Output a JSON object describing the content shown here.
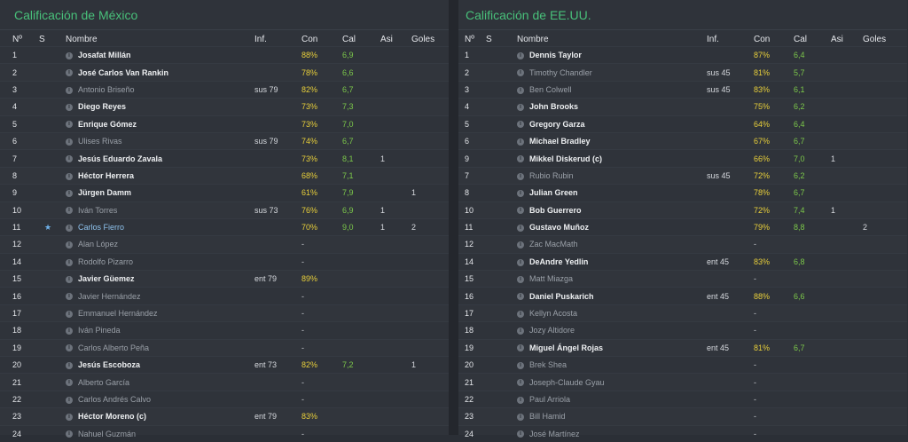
{
  "left": {
    "title": "Calificación de México",
    "headers": {
      "num": "Nº",
      "s": "S",
      "name": "Nombre",
      "inf": "Inf.",
      "con": "Con",
      "cal": "Cal",
      "asi": "Asi",
      "goles": "Goles"
    },
    "rows": [
      {
        "num": "1",
        "s": "",
        "name": "Josafat Millán",
        "inf": "",
        "con": "88%",
        "cal": "6,9",
        "asi": "",
        "goles": "",
        "starter": true
      },
      {
        "num": "2",
        "s": "",
        "name": "José Carlos Van Rankin",
        "inf": "",
        "con": "78%",
        "cal": "6,6",
        "asi": "",
        "goles": "",
        "starter": true
      },
      {
        "num": "3",
        "s": "",
        "name": "Antonio Briseño",
        "inf": "sus 79",
        "con": "82%",
        "cal": "6,7",
        "asi": "",
        "goles": "",
        "starter": false
      },
      {
        "num": "4",
        "s": "",
        "name": "Diego Reyes",
        "inf": "",
        "con": "73%",
        "cal": "7,3",
        "asi": "",
        "goles": "",
        "starter": true
      },
      {
        "num": "5",
        "s": "",
        "name": "Enrique Gómez",
        "inf": "",
        "con": "73%",
        "cal": "7,0",
        "asi": "",
        "goles": "",
        "starter": true
      },
      {
        "num": "6",
        "s": "",
        "name": "Ulises Rivas",
        "inf": "sus 79",
        "con": "74%",
        "cal": "6,7",
        "asi": "",
        "goles": "",
        "starter": false
      },
      {
        "num": "7",
        "s": "",
        "name": "Jesús Eduardo Zavala",
        "inf": "",
        "con": "73%",
        "cal": "8,1",
        "asi": "1",
        "goles": "",
        "starter": true
      },
      {
        "num": "8",
        "s": "",
        "name": "Héctor Herrera",
        "inf": "",
        "con": "68%",
        "cal": "7,1",
        "asi": "",
        "goles": "",
        "starter": true
      },
      {
        "num": "9",
        "s": "",
        "name": "Jürgen Damm",
        "inf": "",
        "con": "61%",
        "cal": "7,9",
        "asi": "",
        "goles": "1",
        "starter": true
      },
      {
        "num": "10",
        "s": "",
        "name": "Iván Torres",
        "inf": "sus 73",
        "con": "76%",
        "cal": "6,9",
        "asi": "1",
        "goles": "",
        "starter": false
      },
      {
        "num": "11",
        "s": "★",
        "name": "Carlos Fierro",
        "inf": "",
        "con": "70%",
        "cal": "9,0",
        "asi": "1",
        "goles": "2",
        "starter": true,
        "highlight": true
      },
      {
        "num": "12",
        "s": "",
        "name": "Alan López",
        "inf": "",
        "con": "-",
        "cal": "",
        "asi": "",
        "goles": "",
        "starter": false
      },
      {
        "num": "14",
        "s": "",
        "name": "Rodolfo Pizarro",
        "inf": "",
        "con": "-",
        "cal": "",
        "asi": "",
        "goles": "",
        "starter": false
      },
      {
        "num": "15",
        "s": "",
        "name": "Javier Güemez",
        "inf": "ent 79",
        "con": "89%",
        "cal": "",
        "asi": "",
        "goles": "",
        "starter": true
      },
      {
        "num": "16",
        "s": "",
        "name": "Javier Hernández",
        "inf": "",
        "con": "-",
        "cal": "",
        "asi": "",
        "goles": "",
        "starter": false
      },
      {
        "num": "17",
        "s": "",
        "name": "Emmanuel Hernández",
        "inf": "",
        "con": "-",
        "cal": "",
        "asi": "",
        "goles": "",
        "starter": false
      },
      {
        "num": "18",
        "s": "",
        "name": "Iván Pineda",
        "inf": "",
        "con": "-",
        "cal": "",
        "asi": "",
        "goles": "",
        "starter": false
      },
      {
        "num": "19",
        "s": "",
        "name": "Carlos Alberto Peña",
        "inf": "",
        "con": "-",
        "cal": "",
        "asi": "",
        "goles": "",
        "starter": false
      },
      {
        "num": "20",
        "s": "",
        "name": "Jesús Escoboza",
        "inf": "ent 73",
        "con": "82%",
        "cal": "7,2",
        "asi": "",
        "goles": "1",
        "starter": true
      },
      {
        "num": "21",
        "s": "",
        "name": "Alberto García",
        "inf": "",
        "con": "-",
        "cal": "",
        "asi": "",
        "goles": "",
        "starter": false
      },
      {
        "num": "22",
        "s": "",
        "name": "Carlos Andrés Calvo",
        "inf": "",
        "con": "-",
        "cal": "",
        "asi": "",
        "goles": "",
        "starter": false
      },
      {
        "num": "23",
        "s": "",
        "name": "Héctor Moreno (c)",
        "inf": "ent 79",
        "con": "83%",
        "cal": "",
        "asi": "",
        "goles": "",
        "starter": true
      },
      {
        "num": "24",
        "s": "",
        "name": "Nahuel Guzmán",
        "inf": "",
        "con": "-",
        "cal": "",
        "asi": "",
        "goles": "",
        "starter": false
      }
    ]
  },
  "right": {
    "title": "Calificación de EE.UU.",
    "headers": {
      "num": "Nº",
      "s": "S",
      "name": "Nombre",
      "inf": "Inf.",
      "con": "Con",
      "cal": "Cal",
      "asi": "Asi",
      "goles": "Goles"
    },
    "rows": [
      {
        "num": "1",
        "s": "",
        "name": "Dennis Taylor",
        "inf": "",
        "con": "87%",
        "cal": "6,4",
        "asi": "",
        "goles": "",
        "starter": true
      },
      {
        "num": "2",
        "s": "",
        "name": "Timothy Chandler",
        "inf": "sus 45",
        "con": "81%",
        "cal": "5,7",
        "asi": "",
        "goles": "",
        "starter": false
      },
      {
        "num": "3",
        "s": "",
        "name": "Ben Colwell",
        "inf": "sus 45",
        "con": "83%",
        "cal": "6,1",
        "asi": "",
        "goles": "",
        "starter": false
      },
      {
        "num": "4",
        "s": "",
        "name": "John Brooks",
        "inf": "",
        "con": "75%",
        "cal": "6,2",
        "asi": "",
        "goles": "",
        "starter": true
      },
      {
        "num": "5",
        "s": "",
        "name": "Gregory Garza",
        "inf": "",
        "con": "64%",
        "cal": "6,4",
        "asi": "",
        "goles": "",
        "starter": true
      },
      {
        "num": "6",
        "s": "",
        "name": "Michael Bradley",
        "inf": "",
        "con": "67%",
        "cal": "6,7",
        "asi": "",
        "goles": "",
        "starter": true
      },
      {
        "num": "9",
        "s": "",
        "name": "Mikkel Diskerud (c)",
        "inf": "",
        "con": "66%",
        "cal": "7,0",
        "asi": "1",
        "goles": "",
        "starter": true
      },
      {
        "num": "7",
        "s": "",
        "name": "Rubio Rubin",
        "inf": "sus 45",
        "con": "72%",
        "cal": "6,2",
        "asi": "",
        "goles": "",
        "starter": false
      },
      {
        "num": "8",
        "s": "",
        "name": "Julian Green",
        "inf": "",
        "con": "78%",
        "cal": "6,7",
        "asi": "",
        "goles": "",
        "starter": true
      },
      {
        "num": "10",
        "s": "",
        "name": "Bob Guerrero",
        "inf": "",
        "con": "72%",
        "cal": "7,4",
        "asi": "1",
        "goles": "",
        "starter": true
      },
      {
        "num": "11",
        "s": "",
        "name": "Gustavo Muñoz",
        "inf": "",
        "con": "79%",
        "cal": "8,8",
        "asi": "",
        "goles": "2",
        "starter": true
      },
      {
        "num": "12",
        "s": "",
        "name": "Zac MacMath",
        "inf": "",
        "con": "-",
        "cal": "",
        "asi": "",
        "goles": "",
        "starter": false
      },
      {
        "num": "14",
        "s": "",
        "name": "DeAndre Yedlin",
        "inf": "ent 45",
        "con": "83%",
        "cal": "6,8",
        "asi": "",
        "goles": "",
        "starter": true
      },
      {
        "num": "15",
        "s": "",
        "name": "Matt Miazga",
        "inf": "",
        "con": "-",
        "cal": "",
        "asi": "",
        "goles": "",
        "starter": false
      },
      {
        "num": "16",
        "s": "",
        "name": "Daniel Puskarich",
        "inf": "ent 45",
        "con": "88%",
        "cal": "6,6",
        "asi": "",
        "goles": "",
        "starter": true
      },
      {
        "num": "17",
        "s": "",
        "name": "Kellyn Acosta",
        "inf": "",
        "con": "-",
        "cal": "",
        "asi": "",
        "goles": "",
        "starter": false
      },
      {
        "num": "18",
        "s": "",
        "name": "Jozy Altidore",
        "inf": "",
        "con": "-",
        "cal": "",
        "asi": "",
        "goles": "",
        "starter": false
      },
      {
        "num": "19",
        "s": "",
        "name": "Miguel Ángel Rojas",
        "inf": "ent 45",
        "con": "81%",
        "cal": "6,7",
        "asi": "",
        "goles": "",
        "starter": true
      },
      {
        "num": "20",
        "s": "",
        "name": "Brek Shea",
        "inf": "",
        "con": "-",
        "cal": "",
        "asi": "",
        "goles": "",
        "starter": false
      },
      {
        "num": "21",
        "s": "",
        "name": "Joseph-Claude Gyau",
        "inf": "",
        "con": "-",
        "cal": "",
        "asi": "",
        "goles": "",
        "starter": false
      },
      {
        "num": "22",
        "s": "",
        "name": "Paul Arriola",
        "inf": "",
        "con": "-",
        "cal": "",
        "asi": "",
        "goles": "",
        "starter": false
      },
      {
        "num": "23",
        "s": "",
        "name": "Bill Hamid",
        "inf": "",
        "con": "-",
        "cal": "",
        "asi": "",
        "goles": "",
        "starter": false
      },
      {
        "num": "24",
        "s": "",
        "name": "José Martínez",
        "inf": "",
        "con": "-",
        "cal": "",
        "asi": "",
        "goles": "",
        "starter": false
      }
    ]
  },
  "colors": {
    "title": "#48c07a",
    "con": "#e8cf3a",
    "cal": "#7cc84a",
    "highlight": "#8fc3ee"
  },
  "icons": {
    "info": "info-icon",
    "star": "star-icon"
  }
}
